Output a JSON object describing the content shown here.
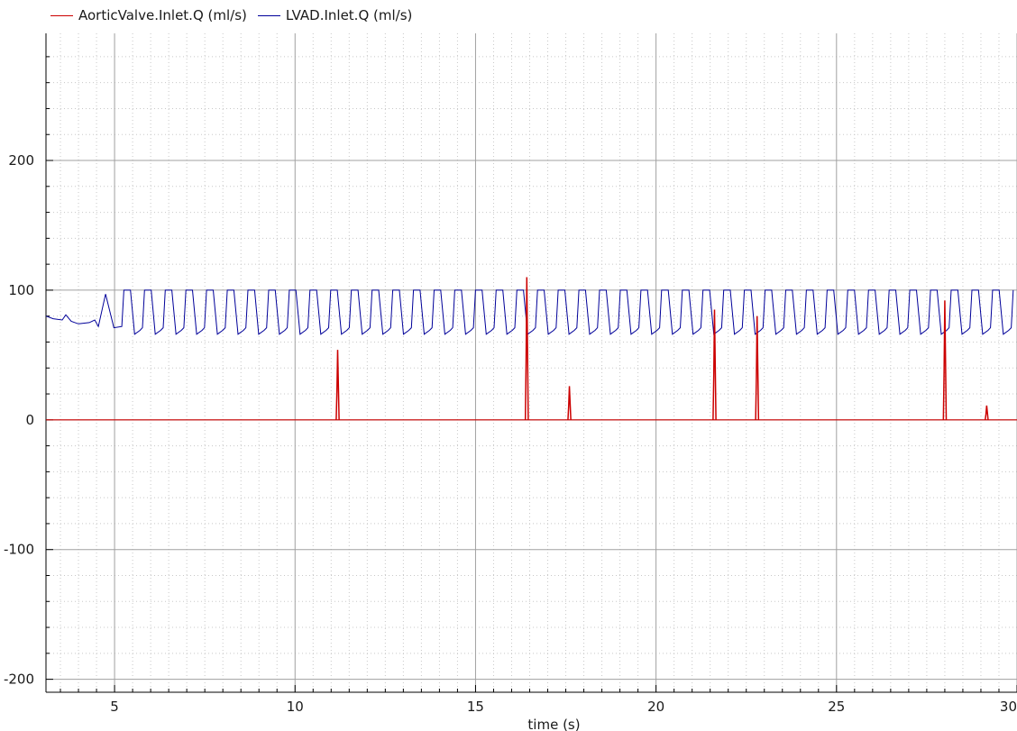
{
  "chart_data": {
    "type": "line",
    "xlabel": "time (s)",
    "ylabel": "",
    "xlim": [
      3.1,
      30
    ],
    "ylim": [
      -210,
      298
    ],
    "x_ticks": [
      5,
      10,
      15,
      20,
      25,
      30
    ],
    "y_ticks": [
      -200,
      -100,
      0,
      100,
      200
    ],
    "grid": true,
    "legend_position": "top-left",
    "series": [
      {
        "name": "AorticValve.Inlet.Q (ml/s)",
        "color": "#cc0000",
        "baseline": 0,
        "spikes": [
          {
            "x": 11.18,
            "y": 54
          },
          {
            "x": 16.42,
            "y": 110
          },
          {
            "x": 17.6,
            "y": 26
          },
          {
            "x": 21.62,
            "y": 85
          },
          {
            "x": 22.8,
            "y": 80
          },
          {
            "x": 28.0,
            "y": 92
          },
          {
            "x": 29.16,
            "y": 11
          }
        ]
      },
      {
        "name": "LVAD.Inlet.Q (ml/s)",
        "color": "#000099",
        "startup": [
          {
            "x": 3.1,
            "y": 80
          },
          {
            "x": 3.3,
            "y": 78
          },
          {
            "x": 3.55,
            "y": 77
          },
          {
            "x": 3.65,
            "y": 81
          },
          {
            "x": 3.8,
            "y": 76
          },
          {
            "x": 4.0,
            "y": 74
          },
          {
            "x": 4.3,
            "y": 75
          },
          {
            "x": 4.45,
            "y": 77
          },
          {
            "x": 4.55,
            "y": 72
          },
          {
            "x": 4.75,
            "y": 97
          },
          {
            "x": 4.98,
            "y": 71
          },
          {
            "x": 5.2,
            "y": 72
          }
        ],
        "oscillation": {
          "start": 5.2,
          "end": 30,
          "period": 0.573,
          "high": 100,
          "low": 66
        }
      }
    ]
  }
}
